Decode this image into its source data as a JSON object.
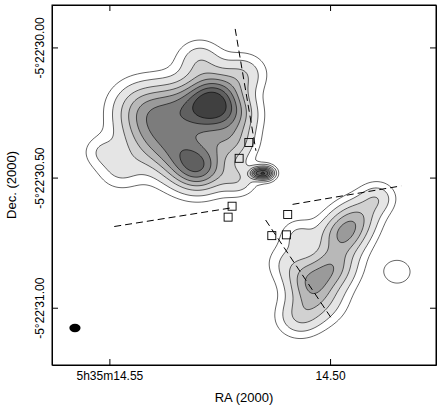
{
  "chart_data": {
    "type": "contour",
    "x_label": "RA (2000)",
    "y_label": "Dec. (2000)",
    "xlim": [
      14.563,
      14.476
    ],
    "ylim": [
      29.837,
      31.22
    ],
    "xticks": [
      {
        "value": 14.55,
        "label": "5h35m14.55"
      },
      {
        "value": 14.5,
        "label": "14.50"
      }
    ],
    "yticks": [
      {
        "value": 30.0,
        "label": "-5°22'30.00"
      },
      {
        "value": 30.5,
        "label": "-5°22'30.50"
      },
      {
        "value": 31.0,
        "label": "-5°22'31.00"
      }
    ],
    "contour_levels": [
      0.15,
      0.3,
      0.5,
      0.7,
      0.9,
      1.1,
      1.3,
      1.5,
      1.8
    ],
    "components": [
      {
        "ra": 14.5265,
        "dec": 30.184,
        "peak": 1.0,
        "sigma": 0.064
      },
      {
        "ra": 14.5276,
        "dec": 30.255,
        "peak": 0.8,
        "sigma": 0.071
      },
      {
        "ra": 14.5298,
        "dec": 30.461,
        "peak": 1.0,
        "sigma": 0.064
      },
      {
        "ra": 14.5348,
        "dec": 30.397,
        "peak": 0.7,
        "sigma": 0.078
      },
      {
        "ra": 14.541,
        "dec": 30.326,
        "peak": 0.6,
        "sigma": 0.078
      },
      {
        "ra": 14.5433,
        "dec": 30.22,
        "peak": 0.5,
        "sigma": 0.071
      },
      {
        "ra": 14.5354,
        "dec": 30.22,
        "peak": 0.6,
        "sigma": 0.071
      },
      {
        "ra": 14.522,
        "dec": 30.362,
        "peak": 0.5,
        "sigma": 0.053
      },
      {
        "ra": 14.5197,
        "dec": 30.096,
        "peak": 0.4,
        "sigma": 0.053
      },
      {
        "ra": 14.5209,
        "dec": 30.255,
        "peak": 0.4,
        "sigma": 0.053
      },
      {
        "ra": 14.5478,
        "dec": 30.468,
        "peak": 0.3,
        "sigma": 0.053
      },
      {
        "ra": 14.5522,
        "dec": 30.397,
        "peak": 0.25,
        "sigma": 0.043
      },
      {
        "ra": 14.5209,
        "dec": 30.504,
        "peak": 0.4,
        "sigma": 0.043
      },
      {
        "ra": 14.5298,
        "dec": 30.043,
        "peak": 0.4,
        "sigma": 0.053
      },
      {
        "ra": 14.4973,
        "dec": 30.716,
        "peak": 0.8,
        "sigma": 0.057
      },
      {
        "ra": 14.4996,
        "dec": 30.84,
        "peak": 0.7,
        "sigma": 0.057
      },
      {
        "ra": 14.5029,
        "dec": 30.965,
        "peak": 0.5,
        "sigma": 0.064
      },
      {
        "ra": 14.5074,
        "dec": 31.035,
        "peak": 0.4,
        "sigma": 0.053
      },
      {
        "ra": 14.4939,
        "dec": 30.645,
        "peak": 0.5,
        "sigma": 0.053
      },
      {
        "ra": 14.4895,
        "dec": 30.574,
        "peak": 0.4,
        "sigma": 0.043
      },
      {
        "ra": 14.5052,
        "dec": 30.894,
        "peak": 0.5,
        "sigma": 0.053
      },
      {
        "ra": 14.5096,
        "dec": 30.823,
        "peak": 0.3,
        "sigma": 0.053
      },
      {
        "ra": 14.485,
        "dec": 30.858,
        "peak": 0.25,
        "sigma": 0.043
      },
      {
        "ra": 14.5074,
        "dec": 30.716,
        "peak": 0.3,
        "sigma": 0.043
      },
      {
        "ra": 14.5157,
        "dec": 30.479,
        "peak": 1.0,
        "sigma": 0.018
      },
      {
        "ra": 14.5141,
        "dec": 30.479,
        "peak": 0.8,
        "sigma": 0.018
      },
      {
        "ra": 14.5173,
        "dec": 30.479,
        "peak": 0.6,
        "sigma": 0.014
      }
    ],
    "points": {
      "marker": "square",
      "x": [
        14.5184,
        14.5206,
        14.5222,
        14.5231,
        14.5096,
        14.5132,
        14.5099
      ],
      "y": [
        30.365,
        30.426,
        30.61,
        30.652,
        30.642,
        30.723,
        30.72
      ]
    },
    "lines": [
      {
        "line_style": "dashed",
        "x": [
          14.5215,
          14.5168
        ],
        "y": [
          29.929,
          30.397
        ]
      },
      {
        "line_style": "dashed",
        "x": [
          14.5489,
          14.5226
        ],
        "y": [
          30.688,
          30.617
        ]
      },
      {
        "line_style": "dashed",
        "x": [
          14.5085,
          14.4839
        ],
        "y": [
          30.603,
          30.532
        ]
      },
      {
        "line_style": "dashed",
        "x": [
          14.5146,
          14.4996
        ],
        "y": [
          30.663,
          31.043
        ]
      }
    ],
    "beam": {
      "x": 14.5578,
      "y": 31.078,
      "major": 0.043,
      "minor": 0.032
    }
  }
}
